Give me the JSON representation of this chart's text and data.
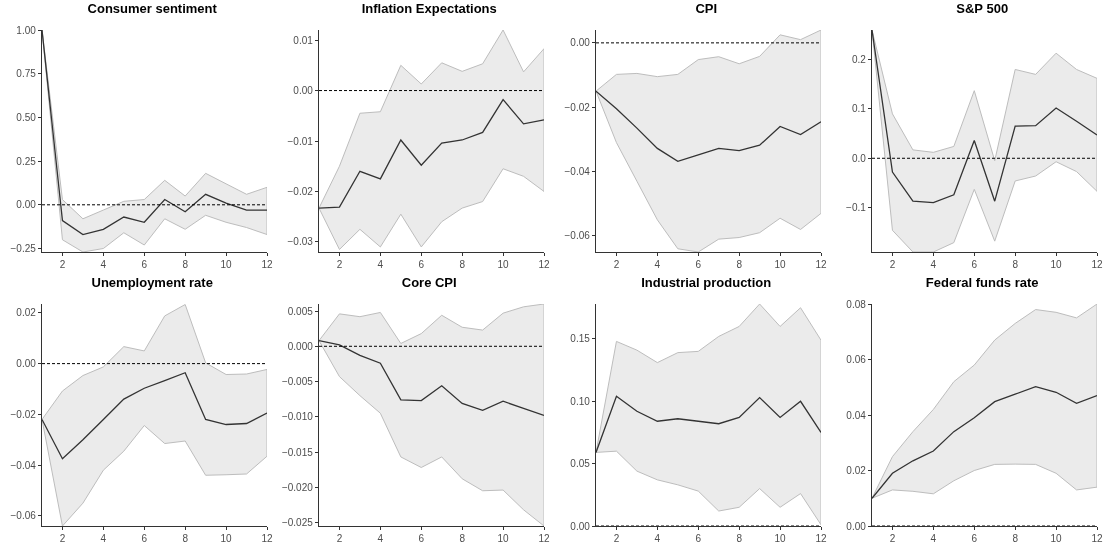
{
  "chart_data": [
    {
      "type": "line",
      "title": "Consumer sentiment",
      "x": [
        1,
        2,
        3,
        4,
        5,
        6,
        7,
        8,
        9,
        10,
        11,
        12
      ],
      "xlim": [
        1,
        12
      ],
      "xticks": [
        2,
        4,
        6,
        8,
        10,
        12
      ],
      "ylim": [
        -0.27,
        1.0
      ],
      "yticks": [
        {
          "value": -0.25,
          "label": "−0.25"
        },
        {
          "value": 0,
          "label": "0.00"
        },
        {
          "value": 0.25,
          "label": "0.25"
        },
        {
          "value": 0.5,
          "label": "0.50"
        },
        {
          "value": 0.75,
          "label": "0.75"
        },
        {
          "value": 1,
          "label": "1.00"
        }
      ],
      "grid": false,
      "line_style": "solid",
      "marker": "none",
      "series": [
        {
          "color": "#333333",
          "values": [
            1.0,
            -0.09,
            -0.17,
            -0.14,
            -0.07,
            -0.1,
            0.03,
            -0.04,
            0.06,
            0.01,
            -0.03,
            -0.03
          ],
          "lower": [
            1.0,
            -0.2,
            -0.27,
            -0.25,
            -0.16,
            -0.23,
            -0.08,
            -0.14,
            -0.06,
            -0.1,
            -0.13,
            -0.17
          ],
          "upper": [
            1.0,
            0.03,
            -0.08,
            -0.03,
            0.02,
            0.03,
            0.14,
            0.05,
            0.18,
            0.12,
            0.06,
            0.1
          ]
        }
      ],
      "ref_lines": [
        {
          "axis": "y",
          "value": 0,
          "line_style": "dashed",
          "color": "#000000"
        }
      ]
    },
    {
      "type": "line",
      "title": "Inflation Expectations",
      "x": [
        1,
        2,
        3,
        4,
        5,
        6,
        7,
        8,
        9,
        10,
        11,
        12
      ],
      "xlim": [
        1,
        12
      ],
      "xticks": [
        2,
        4,
        6,
        8,
        10,
        12
      ],
      "ylim": [
        -0.032,
        0.012
      ],
      "yticks": [
        {
          "value": -0.03,
          "label": "−0.03"
        },
        {
          "value": -0.02,
          "label": "−0.02"
        },
        {
          "value": -0.01,
          "label": "−0.01"
        },
        {
          "value": 0,
          "label": "0.00"
        },
        {
          "value": 0.01,
          "label": "0.01"
        }
      ],
      "grid": false,
      "line_style": "solid",
      "marker": "none",
      "series": [
        {
          "color": "#333333",
          "values": [
            -0.0233,
            -0.0231,
            -0.016,
            -0.0175,
            -0.0098,
            -0.0148,
            -0.0104,
            -0.0098,
            -0.0083,
            -0.0018,
            -0.0066,
            -0.0058
          ],
          "lower": [
            -0.0233,
            -0.0315,
            -0.0275,
            -0.031,
            -0.0245,
            -0.031,
            -0.026,
            -0.0233,
            -0.022,
            -0.0155,
            -0.017,
            -0.02
          ],
          "upper": [
            -0.0233,
            -0.015,
            -0.0045,
            -0.0042,
            0.005,
            0.0013,
            0.0055,
            0.0038,
            0.0053,
            0.012,
            0.0037,
            0.0083
          ]
        }
      ],
      "ref_lines": [
        {
          "axis": "y",
          "value": 0,
          "line_style": "dashed",
          "color": "#000000"
        }
      ]
    },
    {
      "type": "line",
      "title": "CPI",
      "x": [
        1,
        2,
        3,
        4,
        5,
        6,
        7,
        8,
        9,
        10,
        11,
        12
      ],
      "xlim": [
        1,
        12
      ],
      "xticks": [
        2,
        4,
        6,
        8,
        10,
        12
      ],
      "ylim": [
        -0.065,
        0.004
      ],
      "yticks": [
        {
          "value": -0.06,
          "label": "−0.06"
        },
        {
          "value": -0.04,
          "label": "−0.04"
        },
        {
          "value": -0.02,
          "label": "−0.02"
        },
        {
          "value": 0,
          "label": "0.00"
        }
      ],
      "grid": false,
      "line_style": "solid",
      "marker": "none",
      "series": [
        {
          "color": "#333333",
          "values": [
            -0.015,
            -0.0205,
            -0.0265,
            -0.0328,
            -0.0368,
            -0.0348,
            -0.0328,
            -0.0335,
            -0.0318,
            -0.026,
            -0.0285,
            -0.0245
          ],
          "lower": [
            -0.015,
            -0.031,
            -0.043,
            -0.055,
            -0.064,
            -0.065,
            -0.061,
            -0.0605,
            -0.059,
            -0.0545,
            -0.058,
            -0.053
          ],
          "upper": [
            -0.015,
            -0.0098,
            -0.0095,
            -0.0105,
            -0.0098,
            -0.0052,
            -0.0043,
            -0.0065,
            -0.0042,
            0.0025,
            0.001,
            0.004
          ]
        }
      ],
      "ref_lines": [
        {
          "axis": "y",
          "value": 0,
          "line_style": "dashed",
          "color": "#000000"
        }
      ]
    },
    {
      "type": "line",
      "title": "S&P 500",
      "x": [
        1,
        2,
        3,
        4,
        5,
        6,
        7,
        8,
        9,
        10,
        11,
        12
      ],
      "xlim": [
        1,
        12
      ],
      "xticks": [
        2,
        4,
        6,
        8,
        10,
        12
      ],
      "ylim": [
        -0.19,
        0.26
      ],
      "yticks": [
        {
          "value": -0.1,
          "label": "−0.1"
        },
        {
          "value": 0,
          "label": "0.0"
        },
        {
          "value": 0.1,
          "label": "0.1"
        },
        {
          "value": 0.2,
          "label": "0.2"
        }
      ],
      "grid": false,
      "line_style": "solid",
      "marker": "none",
      "series": [
        {
          "color": "#333333",
          "values": [
            0.26,
            -0.028,
            -0.087,
            -0.09,
            -0.074,
            0.036,
            -0.087,
            0.065,
            0.066,
            0.102,
            0.075,
            0.047
          ],
          "lower": [
            0.26,
            -0.146,
            -0.19,
            -0.19,
            -0.171,
            -0.063,
            -0.168,
            -0.046,
            -0.036,
            -0.007,
            -0.027,
            -0.067
          ],
          "upper": [
            0.26,
            0.09,
            0.017,
            0.012,
            0.024,
            0.137,
            -0.005,
            0.18,
            0.17,
            0.213,
            0.18,
            0.162
          ]
        }
      ],
      "ref_lines": [
        {
          "axis": "y",
          "value": 0,
          "line_style": "dashed",
          "color": "#000000"
        }
      ]
    },
    {
      "type": "line",
      "title": "Unemployment rate",
      "x": [
        1,
        2,
        3,
        4,
        5,
        6,
        7,
        8,
        9,
        10,
        11,
        12
      ],
      "xlim": [
        1,
        12
      ],
      "xticks": [
        2,
        4,
        6,
        8,
        10,
        12
      ],
      "ylim": [
        -0.064,
        0.0235
      ],
      "yticks": [
        {
          "value": -0.06,
          "label": "−0.06"
        },
        {
          "value": -0.04,
          "label": "−0.04"
        },
        {
          "value": -0.02,
          "label": "−0.02"
        },
        {
          "value": 0,
          "label": "0.00"
        },
        {
          "value": 0.02,
          "label": "0.02"
        }
      ],
      "grid": false,
      "line_style": "solid",
      "marker": "none",
      "series": [
        {
          "color": "#333333",
          "values": [
            -0.022,
            -0.0375,
            -0.03,
            -0.022,
            -0.014,
            -0.0097,
            -0.0067,
            -0.0036,
            -0.022,
            -0.024,
            -0.0236,
            -0.0195
          ],
          "lower": [
            -0.022,
            -0.064,
            -0.055,
            -0.042,
            -0.0345,
            -0.0244,
            -0.0315,
            -0.0305,
            -0.044,
            -0.0438,
            -0.0435,
            -0.0365
          ],
          "upper": [
            -0.022,
            -0.0108,
            -0.0047,
            -0.0013,
            0.0067,
            0.005,
            0.0188,
            0.0233,
            0.0003,
            -0.0043,
            -0.0041,
            -0.0023
          ]
        }
      ],
      "ref_lines": [
        {
          "axis": "y",
          "value": 0,
          "line_style": "dashed",
          "color": "#000000"
        }
      ]
    },
    {
      "type": "line",
      "title": "Core CPI",
      "x": [
        1,
        2,
        3,
        4,
        5,
        6,
        7,
        8,
        9,
        10,
        11,
        12
      ],
      "xlim": [
        1,
        12
      ],
      "xticks": [
        2,
        4,
        6,
        8,
        10,
        12
      ],
      "ylim": [
        -0.0255,
        0.006
      ],
      "yticks": [
        {
          "value": -0.025,
          "label": "−0.025"
        },
        {
          "value": -0.02,
          "label": "−0.020"
        },
        {
          "value": -0.015,
          "label": "−0.015"
        },
        {
          "value": -0.01,
          "label": "−0.010"
        },
        {
          "value": -0.005,
          "label": "−0.005"
        },
        {
          "value": 0,
          "label": "0.000"
        },
        {
          "value": 0.005,
          "label": "0.005"
        }
      ],
      "grid": false,
      "line_style": "solid",
      "marker": "none",
      "series": [
        {
          "color": "#333333",
          "values": [
            0.0008,
            0.0002,
            -0.0013,
            -0.0024,
            -0.0076,
            -0.0077,
            -0.0056,
            -0.0081,
            -0.0091,
            -0.0078,
            -0.0088,
            -0.0098
          ],
          "lower": [
            0.0008,
            -0.0043,
            -0.007,
            -0.0095,
            -0.0157,
            -0.0172,
            -0.0157,
            -0.0188,
            -0.0205,
            -0.0204,
            -0.0232,
            -0.0255
          ],
          "upper": [
            0.0008,
            0.0046,
            0.0042,
            0.0048,
            0.0004,
            0.0018,
            0.0044,
            0.0027,
            0.0023,
            0.0047,
            0.0056,
            0.006
          ]
        }
      ],
      "ref_lines": [
        {
          "axis": "y",
          "value": 0,
          "line_style": "dashed",
          "color": "#000000"
        }
      ]
    },
    {
      "type": "line",
      "title": "Industrial production",
      "x": [
        1,
        2,
        3,
        4,
        5,
        6,
        7,
        8,
        9,
        10,
        11,
        12
      ],
      "xlim": [
        1,
        12
      ],
      "xticks": [
        2,
        4,
        6,
        8,
        10,
        12
      ],
      "ylim": [
        0,
        0.178
      ],
      "yticks": [
        {
          "value": 0,
          "label": "0.00"
        },
        {
          "value": 0.05,
          "label": "0.05"
        },
        {
          "value": 0.1,
          "label": "0.10"
        },
        {
          "value": 0.15,
          "label": "0.15"
        }
      ],
      "grid": false,
      "line_style": "solid",
      "marker": "none",
      "series": [
        {
          "color": "#333333",
          "values": [
            0.059,
            0.104,
            0.092,
            0.084,
            0.086,
            0.084,
            0.082,
            0.087,
            0.103,
            0.087,
            0.1,
            0.075
          ],
          "lower": [
            0.059,
            0.06,
            0.044,
            0.037,
            0.033,
            0.028,
            0.012,
            0.015,
            0.03,
            0.015,
            0.026,
            0.001
          ],
          "upper": [
            0.059,
            0.148,
            0.141,
            0.131,
            0.139,
            0.14,
            0.152,
            0.16,
            0.178,
            0.16,
            0.175,
            0.149
          ]
        }
      ],
      "ref_lines": [
        {
          "axis": "y",
          "value": 0,
          "line_style": "dashed",
          "color": "#000000"
        }
      ]
    },
    {
      "type": "line",
      "title": "Federal funds rate",
      "x": [
        1,
        2,
        3,
        4,
        5,
        6,
        7,
        8,
        9,
        10,
        11,
        12
      ],
      "xlim": [
        1,
        12
      ],
      "xticks": [
        2,
        4,
        6,
        8,
        10,
        12
      ],
      "ylim": [
        0,
        0.08
      ],
      "yticks": [
        {
          "value": 0,
          "label": "0.00"
        },
        {
          "value": 0.02,
          "label": "0.02"
        },
        {
          "value": 0.04,
          "label": "0.04"
        },
        {
          "value": 0.06,
          "label": "0.06"
        },
        {
          "value": 0.08,
          "label": "0.08"
        }
      ],
      "grid": false,
      "line_style": "solid",
      "marker": "none",
      "series": [
        {
          "color": "#333333",
          "values": [
            0.01,
            0.019,
            0.0235,
            0.027,
            0.034,
            0.039,
            0.0448,
            0.0475,
            0.0502,
            0.0482,
            0.0442,
            0.047
          ],
          "lower": [
            0.01,
            0.013,
            0.0125,
            0.0116,
            0.0163,
            0.02,
            0.0222,
            0.0223,
            0.0222,
            0.019,
            0.013,
            0.014
          ],
          "upper": [
            0.01,
            0.025,
            0.034,
            0.042,
            0.052,
            0.058,
            0.067,
            0.073,
            0.078,
            0.077,
            0.075,
            0.08
          ]
        }
      ],
      "ref_lines": [
        {
          "axis": "y",
          "value": 0,
          "line_style": "dashed",
          "color": "#000000"
        }
      ]
    }
  ]
}
